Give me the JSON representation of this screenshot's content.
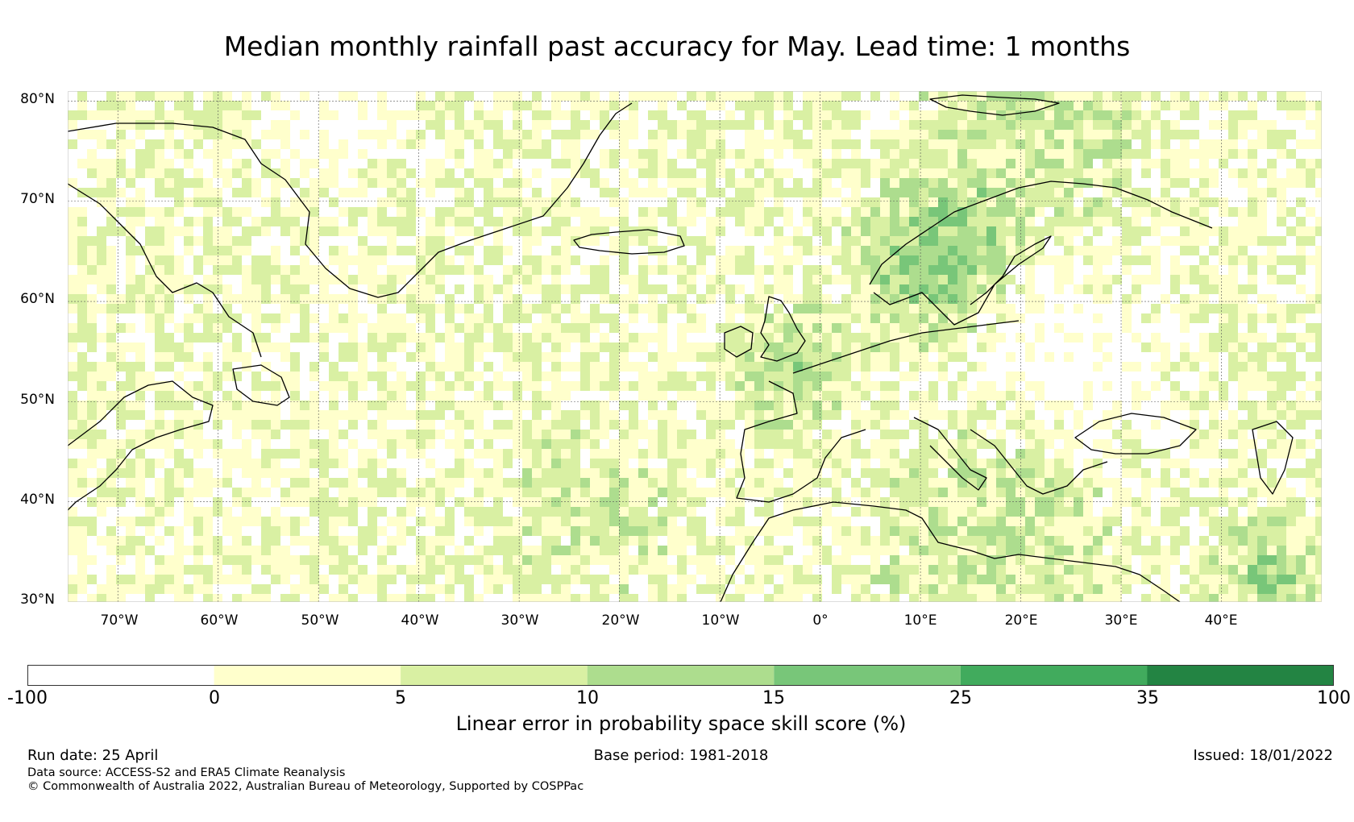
{
  "title": "Median monthly rainfall past accuracy for May. Lead time: 1 months",
  "map": {
    "lat_labels": [
      "80°N",
      "70°N",
      "60°N",
      "50°N",
      "40°N",
      "30°N"
    ],
    "lon_labels": [
      "70°W",
      "60°W",
      "50°W",
      "40°W",
      "30°W",
      "20°W",
      "10°W",
      "0°",
      "10°E",
      "20°E",
      "30°E",
      "40°E"
    ],
    "lat_range": [
      30,
      81
    ],
    "lon_range": [
      -75,
      50
    ]
  },
  "colorbar": {
    "label": "Linear error in probability space skill score (%)",
    "ticks": [
      "-100",
      "0",
      "5",
      "10",
      "15",
      "25",
      "35",
      "100"
    ],
    "colors": [
      "#ffffff",
      "#ffffcc",
      "#d9f0a3",
      "#addd8e",
      "#78c679",
      "#41ab5d",
      "#238443"
    ]
  },
  "footer": {
    "run_date": "Run date: 25 April",
    "base_period": "Base period: 1981-2018",
    "issued": "Issued: 18/01/2022",
    "data_source": "Data source: ACCESS-S2 and ERA5 Climate Reanalysis",
    "copyright": "© Commonwealth of Australia 2022, Australian Bureau of Meteorology, Supported by COSPPac"
  }
}
